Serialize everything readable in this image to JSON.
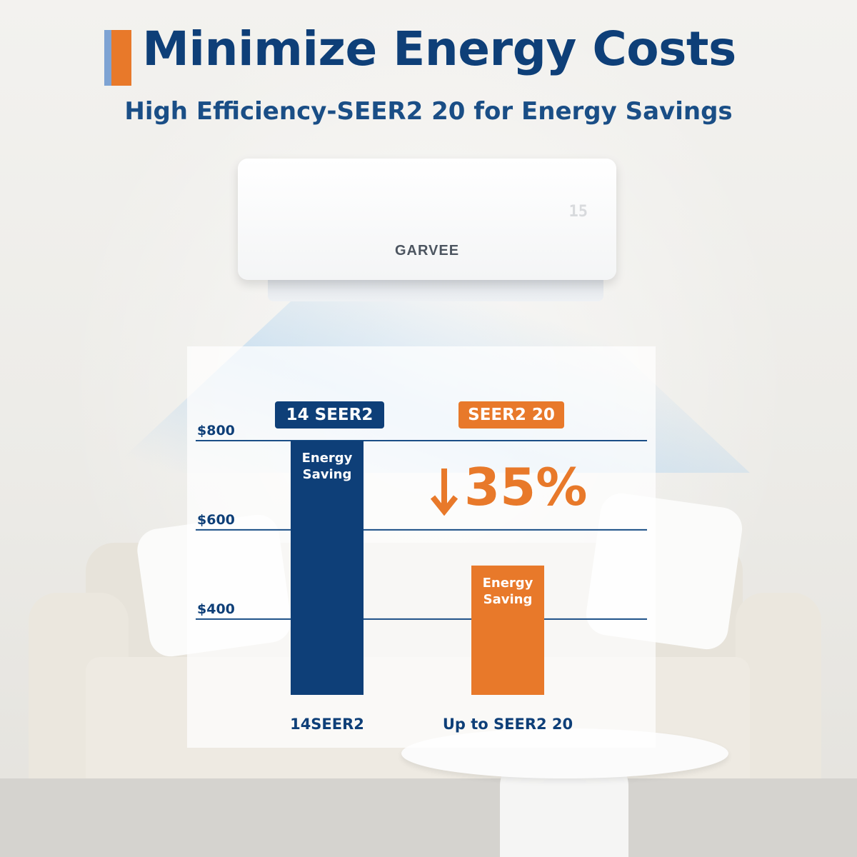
{
  "header": {
    "title": "Minimize Energy Costs",
    "subtitle": "High Efficiency-SEER2 20 for Energy Savings"
  },
  "ac_unit": {
    "brand": "GARVEE",
    "display": "15"
  },
  "chart_data": {
    "type": "bar",
    "categories": [
      "14SEER2",
      "Up to SEER2 20"
    ],
    "values": [
      800,
      520
    ],
    "badges": [
      "14 SEER2",
      "SEER2 20"
    ],
    "bar_labels": [
      "Energy Saving",
      "Energy Saving"
    ],
    "reduction": "35%",
    "yticks": [
      "$800",
      "$600",
      "$400"
    ],
    "ytick_values": [
      800,
      600,
      400
    ],
    "ylim": [
      230,
      800
    ],
    "grid": true,
    "colors": {
      "bar_1": "#0e3f78",
      "bar_2": "#e8792a",
      "grid": "#1a4e86",
      "text": "#0e3f78"
    }
  }
}
